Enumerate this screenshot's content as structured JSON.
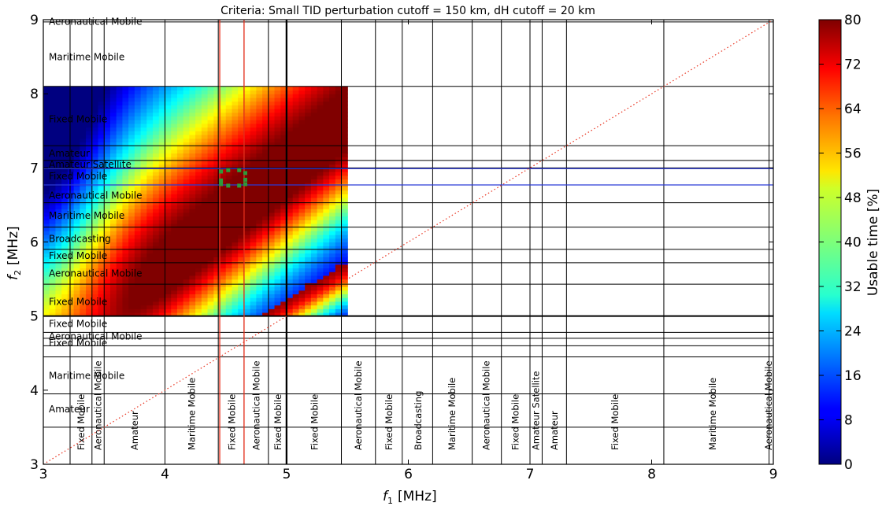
{
  "chart_data": {
    "type": "heatmap",
    "title": "Criteria: Small TID perturbation cutoff = 150 km, dH cutoff =  20 km",
    "xlabel": "f",
    "xlabel_sub": "1",
    "xlabel_unit": "[MHz]",
    "ylabel": "f",
    "ylabel_sub": "2",
    "ylabel_unit": "[MHz]",
    "xlim": [
      3,
      9
    ],
    "ylim": [
      3,
      9
    ],
    "x_ticks": [
      "3",
      "4",
      "5",
      "6",
      "7",
      "8",
      "9"
    ],
    "y_ticks": [
      "3",
      "4",
      "5",
      "6",
      "7",
      "8",
      "9"
    ],
    "heatmap_region": {
      "f1_range": [
        3.0,
        5.5
      ],
      "f2_range": [
        5.0,
        8.1
      ]
    },
    "heatmap_description_peak": {
      "f1": 3.9,
      "f2": 6.5,
      "value": 80
    },
    "colorbar": {
      "label": "Usable time [%]",
      "ticks": [
        "0",
        "8",
        "16",
        "24",
        "32",
        "40",
        "48",
        "56",
        "64",
        "72",
        "80"
      ],
      "range": [
        0,
        80
      ],
      "colormap": "jet"
    },
    "vertical_band_boundaries": [
      3.22,
      3.4,
      3.5,
      4.0,
      4.438,
      4.65,
      4.85,
      4.995,
      5.45,
      5.73,
      5.95,
      6.2,
      6.525,
      6.765,
      7.0,
      7.1,
      7.3,
      8.1,
      8.965
    ],
    "vertical_bands": [
      {
        "label": "Fixed Mobile",
        "f1": 3.31
      },
      {
        "label": "Aeronautical Mobile",
        "f1": 3.45
      },
      {
        "label": "Amateur",
        "f1": 3.75
      },
      {
        "label": "Maritime Mobile",
        "f1": 4.22
      },
      {
        "label": "Fixed Mobile",
        "f1": 4.55
      },
      {
        "label": "Aeronautical Mobile",
        "f1": 4.75
      },
      {
        "label": "Fixed Mobile",
        "f1": 4.93
      },
      {
        "label": "Fixed Mobile",
        "f1": 5.23
      },
      {
        "label": "Aeronautical Mobile",
        "f1": 5.59
      },
      {
        "label": "Fixed Mobile",
        "f1": 5.84
      },
      {
        "label": "Broadcasting",
        "f1": 6.08
      },
      {
        "label": "Maritime Mobile",
        "f1": 6.36
      },
      {
        "label": "Aeronautical Mobile",
        "f1": 6.64
      },
      {
        "label": "Fixed Mobile",
        "f1": 6.88
      },
      {
        "label": "Amateur Satellite",
        "f1": 7.05
      },
      {
        "label": "Amateur",
        "f1": 7.2
      },
      {
        "label": "Fixed Mobile",
        "f1": 7.7
      },
      {
        "label": "Maritime Mobile",
        "f1": 8.5
      },
      {
        "label": "Aeronautical Mobile",
        "f1": 9.0
      }
    ],
    "horizontal_band_boundaries": [
      3.5,
      3.95,
      4.45,
      4.6,
      4.7,
      4.78,
      5.0,
      5.43,
      5.72,
      5.9,
      6.2,
      6.53,
      6.77,
      7.0,
      7.1,
      7.3,
      8.1,
      8.97
    ],
    "horizontal_bands": [
      {
        "label": "Aeronautical Mobile",
        "f2": 8.98
      },
      {
        "label": "Maritime Mobile",
        "f2": 8.5
      },
      {
        "label": "Fixed Mobile",
        "f2": 7.66
      },
      {
        "label": "Amateur",
        "f2": 7.2
      },
      {
        "label": "Amateur Satellite",
        "f2": 7.05
      },
      {
        "label": "Fixed Mobile",
        "f2": 6.89
      },
      {
        "label": "Aeronautical Mobile",
        "f2": 6.63
      },
      {
        "label": "Maritime Mobile",
        "f2": 6.36
      },
      {
        "label": "Broadcasting",
        "f2": 6.05
      },
      {
        "label": "Fixed Mobile",
        "f2": 5.82
      },
      {
        "label": "Aeronautical Mobile",
        "f2": 5.58
      },
      {
        "label": "Fixed Mobile",
        "f2": 5.2
      },
      {
        "label": "Fixed Mobile",
        "f2": 4.9
      },
      {
        "label": "Aeronautical Mobile",
        "f2": 4.73
      },
      {
        "label": "Fixed Mobile",
        "f2": 4.64
      },
      {
        "label": "Maritime Mobile",
        "f2": 4.2
      },
      {
        "label": "Amateur",
        "f2": 3.75
      }
    ],
    "red_vertical_lines_f1": [
      4.45,
      4.65
    ],
    "blue_horizontal_lines_f2": [
      6.77,
      6.99
    ],
    "diagonal_reference": {
      "from": [
        3,
        3
      ],
      "to": [
        9,
        9
      ],
      "style": "dotted",
      "color": "#e8301c"
    },
    "marker_points": [
      {
        "f1": 4.46,
        "f2": 6.95
      },
      {
        "f1": 4.52,
        "f2": 6.97
      },
      {
        "f1": 4.61,
        "f2": 6.97
      },
      {
        "f1": 4.66,
        "f2": 6.93
      },
      {
        "f1": 4.46,
        "f2": 6.83
      },
      {
        "f1": 4.66,
        "f2": 6.84
      },
      {
        "f1": 4.46,
        "f2": 6.78
      },
      {
        "f1": 4.52,
        "f2": 6.76
      },
      {
        "f1": 4.61,
        "f2": 6.76
      },
      {
        "f1": 4.66,
        "f2": 6.78
      }
    ],
    "colors": {
      "red_line": "#e8301c",
      "blue_line": "#2b3ad6",
      "marker": "#2e9a3a",
      "grid": "#000000"
    }
  }
}
